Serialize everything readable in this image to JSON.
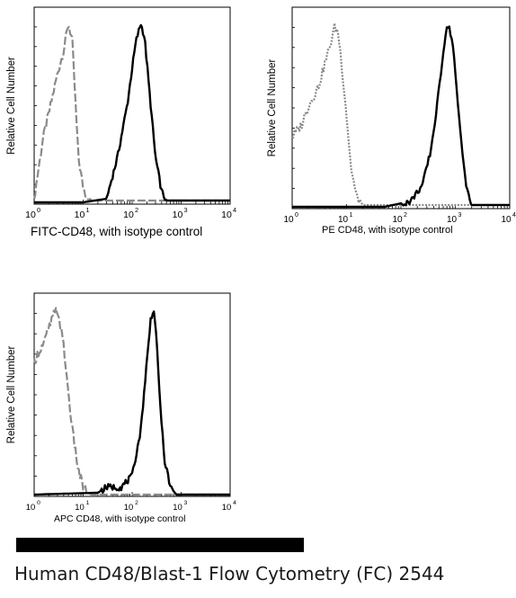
{
  "caption": "Human CD48/Blast-1 Flow Cytometry (FC) 2544",
  "redaction": "black-bar",
  "colors": {
    "isotype": "#8a8a8a",
    "stained": "#000000",
    "frame": "#000000"
  },
  "chart_data": [
    {
      "type": "line",
      "panel": "fitc",
      "ylabel": "Relative Cell Number",
      "xlabel": "FITC-CD48, with isotype control",
      "xscale": "log",
      "xlim": [
        1,
        10000
      ],
      "ticks": [
        1,
        10,
        100,
        1000,
        10000
      ],
      "tick_labels": [
        "10",
        "10",
        "10",
        "10",
        "10"
      ],
      "tick_exponents": [
        "0",
        "1",
        "2",
        "3",
        "4"
      ],
      "series": [
        {
          "role": "isotype",
          "style": "dashed",
          "x": [
            1,
            1.5,
            2,
            3,
            4,
            5,
            6,
            7,
            8,
            10,
            12,
            15
          ],
          "y": [
            0.02,
            0.35,
            0.5,
            0.72,
            0.85,
            1.0,
            0.9,
            0.55,
            0.25,
            0.08,
            0.03,
            0.01
          ]
        },
        {
          "role": "stained",
          "style": "solid",
          "x": [
            1,
            10,
            30,
            50,
            80,
            100,
            120,
            150,
            180,
            220,
            300,
            400,
            500
          ],
          "y": [
            0.0,
            0.0,
            0.02,
            0.25,
            0.55,
            0.75,
            0.9,
            1.0,
            0.92,
            0.65,
            0.25,
            0.06,
            0.01
          ]
        }
      ]
    },
    {
      "type": "line",
      "panel": "pe",
      "ylabel": "Relative Cell Number",
      "xlabel": "PE  CD48,  with isotype control",
      "xscale": "log",
      "xlim": [
        1,
        10000
      ],
      "ticks": [
        1,
        10,
        100,
        1000,
        10000
      ],
      "tick_labels": [
        "10",
        "10",
        "10",
        "10",
        "10"
      ],
      "tick_exponents": [
        "0",
        "1",
        "2",
        "3",
        "4"
      ],
      "series": [
        {
          "role": "isotype",
          "style": "dotted",
          "x": [
            1,
            1.5,
            2,
            3,
            4,
            5,
            6,
            7,
            8,
            10,
            12,
            15,
            20
          ],
          "y": [
            0.38,
            0.45,
            0.55,
            0.65,
            0.78,
            0.88,
            0.98,
            0.95,
            0.8,
            0.5,
            0.22,
            0.06,
            0.01
          ]
        },
        {
          "role": "stained",
          "style": "solid",
          "x": [
            1,
            50,
            150,
            250,
            350,
            450,
            550,
            650,
            750,
            900,
            1200,
            1600,
            2000
          ],
          "y": [
            0.0,
            0.0,
            0.03,
            0.12,
            0.3,
            0.52,
            0.75,
            0.93,
            1.0,
            0.88,
            0.45,
            0.1,
            0.01
          ]
        }
      ]
    },
    {
      "type": "line",
      "panel": "apc",
      "ylabel": "Relative Cell Number",
      "xlabel": "APC CD48, with isotype control",
      "xscale": "log",
      "xlim": [
        1,
        10000
      ],
      "ticks": [
        1,
        10,
        100,
        1000,
        10000
      ],
      "tick_labels": [
        "10",
        "10",
        "10",
        "10",
        "10"
      ],
      "tick_exponents": [
        "0",
        "1",
        "2",
        "3",
        "4"
      ],
      "series": [
        {
          "role": "isotype",
          "style": "dashed",
          "x": [
            1,
            1.3,
            1.6,
            2,
            2.5,
            3,
            4,
            5,
            6,
            8,
            10,
            12,
            15
          ],
          "y": [
            0.72,
            0.78,
            0.82,
            0.9,
            0.97,
            1.0,
            0.8,
            0.55,
            0.35,
            0.13,
            0.04,
            0.01,
            0.0
          ]
        },
        {
          "role": "stained",
          "style": "solid",
          "x": [
            1,
            20,
            30,
            60,
            100,
            150,
            200,
            240,
            270,
            300,
            350,
            450,
            600,
            800
          ],
          "y": [
            0.0,
            0.01,
            0.04,
            0.04,
            0.1,
            0.35,
            0.72,
            0.95,
            1.0,
            0.93,
            0.6,
            0.2,
            0.04,
            0.0
          ]
        }
      ]
    }
  ]
}
